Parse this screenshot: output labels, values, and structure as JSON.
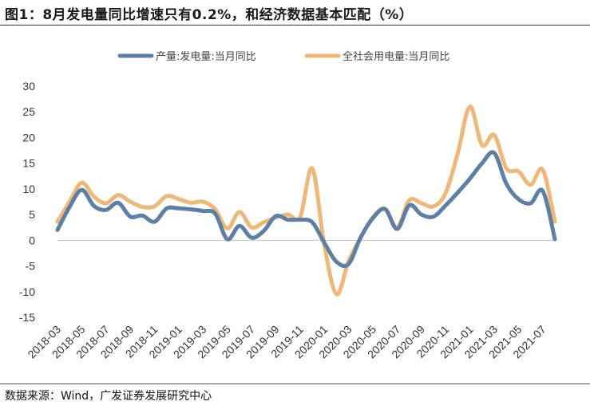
{
  "title": "图1：8月发电量同比增速只有0.2%，和经济数据基本匹配（%）",
  "source": "数据来源：Wind，广发证券发展研究中心",
  "chart_data": {
    "type": "line",
    "title": "图1：8月发电量同比增速只有0.2%，和经济数据基本匹配（%）",
    "xlabel": "",
    "ylabel": "",
    "ylim": [
      -15,
      30
    ],
    "yticks": [
      -15,
      -10,
      -5,
      0,
      5,
      10,
      15,
      20,
      25,
      30
    ],
    "grid": false,
    "legend_position": "top-center",
    "categories": [
      "2018-03",
      "2018-04",
      "2018-05",
      "2018-06",
      "2018-07",
      "2018-08",
      "2018-09",
      "2018-10",
      "2018-11",
      "2018-12",
      "2019-01",
      "2019-02",
      "2019-03",
      "2019-04",
      "2019-05",
      "2019-06",
      "2019-07",
      "2019-08",
      "2019-09",
      "2019-10",
      "2019-11",
      "2019-12",
      "2020-01",
      "2020-02",
      "2020-03",
      "2020-04",
      "2020-05",
      "2020-06",
      "2020-07",
      "2020-08",
      "2020-09",
      "2020-10",
      "2020-11",
      "2020-12",
      "2021-01",
      "2021-02",
      "2021-03",
      "2021-04",
      "2021-05",
      "2021-06",
      "2021-07",
      "2021-08"
    ],
    "tick_labels": [
      "2018-03",
      "2018-05",
      "2018-07",
      "2018-09",
      "2018-11",
      "2019-01",
      "2019-03",
      "2019-05",
      "2019-07",
      "2019-09",
      "2019-11",
      "2020-01",
      "2020-03",
      "2020-05",
      "2020-07",
      "2020-09",
      "2020-11",
      "2021-01",
      "2021-03",
      "2021-05",
      "2021-07"
    ],
    "series": [
      {
        "name": "产量:发电量:当月同比",
        "color": "#5b7fa6",
        "values": [
          2.0,
          6.5,
          9.8,
          6.7,
          5.9,
          7.3,
          4.6,
          4.8,
          3.6,
          6.2,
          6.2,
          6.0,
          5.7,
          5.2,
          0.2,
          2.8,
          0.5,
          1.8,
          4.7,
          4.0,
          4.0,
          3.5,
          -0.5,
          -4.2,
          -4.6,
          0.6,
          4.3,
          6.1,
          2.2,
          6.8,
          5.0,
          4.6,
          6.8,
          9.3,
          12.0,
          15.0,
          17.0,
          11.0,
          8.0,
          7.2,
          9.6,
          0.2
        ]
      },
      {
        "name": "全社会用电量:当月同比",
        "color": "#f0b878",
        "values": [
          3.6,
          7.5,
          11.2,
          8.5,
          7.2,
          8.8,
          7.5,
          6.5,
          6.6,
          8.6,
          8.0,
          7.3,
          7.5,
          6.0,
          2.3,
          5.5,
          2.5,
          3.5,
          4.4,
          5.0,
          4.5,
          14.0,
          -1.0,
          -10.5,
          -4.0,
          0.5,
          4.5,
          6.0,
          2.5,
          7.8,
          7.2,
          6.6,
          9.2,
          17.0,
          26.0,
          18.5,
          20.5,
          14.0,
          13.4,
          10.8,
          13.7,
          3.6
        ]
      }
    ]
  }
}
